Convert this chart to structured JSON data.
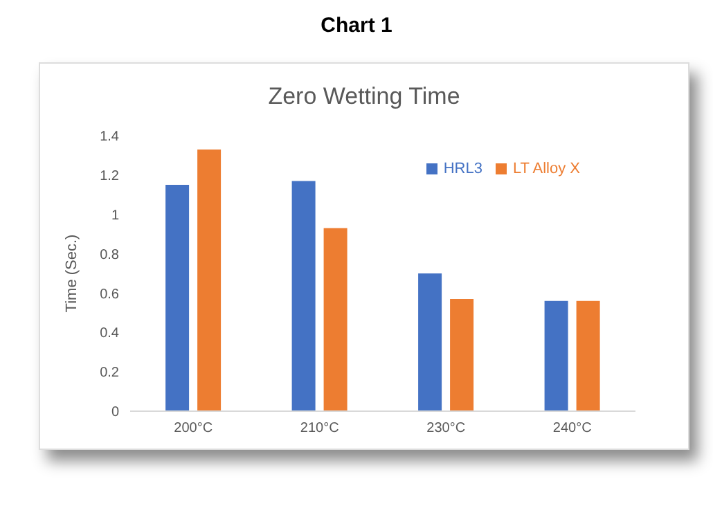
{
  "chart_data": {
    "type": "bar",
    "title": "Chart 1",
    "subtitle": "Zero Wetting Time",
    "ylabel": "Time (Sec.)",
    "categories": [
      "200°C",
      "210°C",
      "230°C",
      "240°C"
    ],
    "series": [
      {
        "name": "HRL3",
        "color": "#4472c4",
        "values": [
          1.15,
          1.17,
          0.7,
          0.56
        ]
      },
      {
        "name": "LT Alloy X",
        "color": "#ed7d31",
        "values": [
          1.33,
          0.93,
          0.57,
          0.56
        ]
      }
    ],
    "ylim": [
      0,
      1.4
    ],
    "yticks": [
      0,
      {
        "value": 0.2,
        "label": "0.2"
      },
      {
        "value": 0.4,
        "label": "0.4"
      },
      {
        "value": 0.6,
        "label": "0.6"
      },
      {
        "value": 0.8,
        "label": "0.8"
      },
      1,
      {
        "value": 1.2,
        "label": "1.2"
      },
      {
        "value": 1.4,
        "label": "1.4"
      }
    ],
    "grid": false,
    "legend": "top right"
  }
}
